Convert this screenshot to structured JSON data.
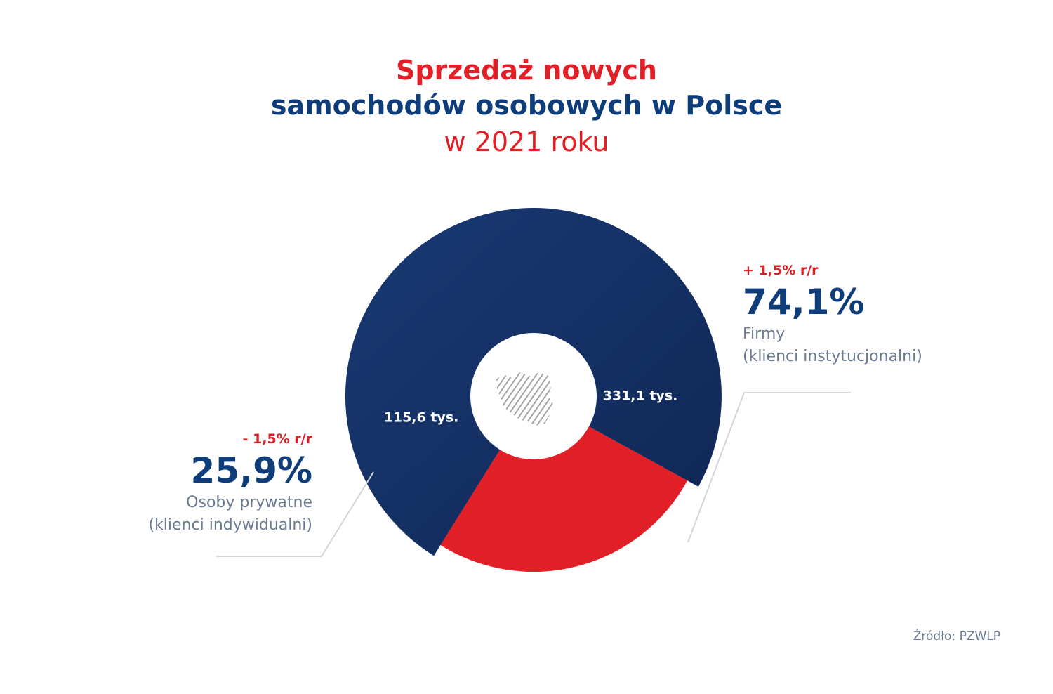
{
  "title": {
    "line1": "Sprzedaż nowych",
    "line2": "samochodów osobowych w Polsce",
    "line3": "w 2021 roku"
  },
  "chart_data": {
    "type": "pie",
    "title": "Sprzedaż nowych samochodów osobowych w Polsce w 2021 roku",
    "slices": [
      {
        "name": "Firmy (klienci instytucjonalni)",
        "share_pct": 74.1,
        "share_label": "74,1%",
        "value_label": "331,1 tys.",
        "value_thousands": 331.1,
        "change_label": "+ 1,5% r/r",
        "change_pct": 1.5,
        "color": "#142f62"
      },
      {
        "name": "Osoby prywatne (klienci indywidualni)",
        "share_pct": 25.9,
        "share_label": "25,9%",
        "value_label": "115,6 tys.",
        "value_thousands": 115.6,
        "change_label": "- 1,5% r/r",
        "change_pct": -1.5,
        "color": "#e01f26"
      }
    ]
  },
  "labels": {
    "right": {
      "change": "+ 1,5% r/r",
      "pct": "74,1%",
      "desc1": "Firmy",
      "desc2": "(klienci instytucjonalni)"
    },
    "left": {
      "change": "- 1,5% r/r",
      "pct": "25,9%",
      "desc1": "Osoby prywatne",
      "desc2": "(klienci indywidualni)"
    }
  },
  "source": "Źródło: PZWLP",
  "colors": {
    "brand_red": "#e01f26",
    "brand_navy": "#0e3d7a",
    "slice_navy": "#142f62",
    "muted_text": "#6b7a90"
  },
  "icons": {
    "center": "poland-map-icon"
  }
}
